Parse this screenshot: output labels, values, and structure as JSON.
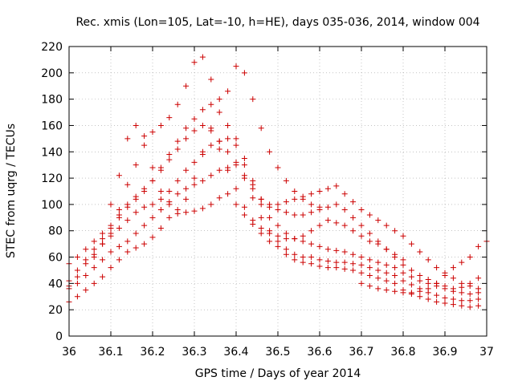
{
  "chart_data": {
    "type": "scatter",
    "title": "Rec. xmis (Lon=105, Lat=-10, h=HE), days 035-036, 2014, window 004",
    "xlabel": "GPS time / Days of year 2014",
    "ylabel": "STEC from uqrg / TECUs",
    "xlim": [
      36,
      37
    ],
    "ylim": [
      0,
      220
    ],
    "xticks": [
      36,
      36.1,
      36.2,
      36.3,
      36.4,
      36.5,
      36.6,
      36.7,
      36.8,
      36.9,
      37
    ],
    "xtick_labels": [
      "36",
      "36.1",
      "36.2",
      "36.3",
      "36.4",
      "36.5",
      "36.6",
      "36.7",
      "36.8",
      "36.9",
      "37"
    ],
    "yticks": [
      0,
      20,
      40,
      60,
      80,
      100,
      120,
      140,
      160,
      180,
      200,
      220
    ],
    "ytick_labels": [
      "0",
      "20",
      "40",
      "60",
      "80",
      "100",
      "120",
      "140",
      "160",
      "180",
      "200",
      "220"
    ],
    "grid": true,
    "legend": "none",
    "marker": "+",
    "color": "#cc0000",
    "series": [
      {
        "x": [
          36.0,
          36.02,
          36.04,
          36.06,
          36.08,
          36.1,
          36.12,
          36.14,
          36.16,
          36.18,
          36.2,
          36.22,
          36.24,
          36.26,
          36.28,
          36.3,
          36.32,
          36.34,
          36.36,
          36.38,
          36.4,
          36.42,
          36.44,
          36.46,
          36.48,
          36.5,
          36.52,
          36.54,
          36.56,
          36.58,
          36.6,
          36.62,
          36.64,
          36.66,
          36.68,
          36.7,
          36.72,
          36.74,
          36.76,
          36.78,
          36.8,
          36.82,
          36.84,
          36.86,
          36.88,
          36.9,
          36.92,
          36.94,
          36.96,
          36.98
        ],
        "y": [
          26,
          30,
          35,
          40,
          45,
          52,
          58,
          64,
          67,
          70,
          75,
          82,
          90,
          93,
          94,
          95,
          97,
          100,
          105,
          108,
          100,
          92,
          85,
          78,
          72,
          68,
          62,
          58,
          56,
          55,
          53,
          52,
          52,
          51,
          50,
          48,
          46,
          44,
          42,
          40,
          35,
          32,
          30,
          28,
          26,
          25,
          24,
          23,
          22,
          23
        ]
      },
      {
        "x": [
          36.0,
          36.02,
          36.04,
          36.06,
          36.08,
          36.1,
          36.12,
          36.14,
          36.16,
          36.18,
          36.2,
          36.22,
          36.24,
          36.26,
          36.28,
          36.3,
          36.32,
          36.34,
          36.36,
          36.38,
          36.4,
          36.42,
          36.44,
          36.46,
          36.48,
          36.5,
          36.52,
          36.54,
          36.56,
          36.58,
          36.6,
          36.62,
          36.64,
          36.66,
          36.68,
          36.7,
          36.72,
          36.74,
          36.76,
          36.78,
          36.8,
          36.82,
          36.84,
          36.86,
          36.88,
          36.9,
          36.92,
          36.94,
          36.96,
          36.98
        ],
        "y": [
          36,
          40,
          46,
          52,
          58,
          64,
          68,
          72,
          78,
          84,
          90,
          96,
          102,
          108,
          112,
          115,
          118,
          122,
          126,
          128,
          130,
          120,
          105,
          90,
          80,
          72,
          66,
          62,
          60,
          60,
          58,
          57,
          56,
          56,
          55,
          54,
          52,
          50,
          48,
          46,
          42,
          39,
          36,
          33,
          31,
          29,
          28,
          27,
          27,
          28
        ]
      },
      {
        "x": [
          36.0,
          36.02,
          36.04,
          36.06,
          36.08,
          36.1,
          36.12,
          36.14,
          36.16,
          36.18,
          36.2,
          36.22,
          36.24,
          36.26,
          36.28,
          36.3,
          36.32,
          36.34,
          36.36,
          36.38,
          36.4,
          36.42,
          36.44,
          36.46,
          36.48,
          36.5,
          36.52,
          36.54,
          36.56,
          36.58,
          36.6,
          36.62,
          36.64,
          36.66,
          36.68,
          36.7,
          36.72,
          36.74,
          36.76,
          36.78,
          36.8,
          36.82,
          36.84,
          36.86,
          36.88,
          36.9,
          36.92,
          36.94,
          36.96,
          36.98
        ],
        "y": [
          38,
          45,
          55,
          62,
          70,
          76,
          82,
          88,
          94,
          98,
          100,
          104,
          110,
          118,
          126,
          132,
          140,
          145,
          148,
          150,
          145,
          130,
          115,
          100,
          90,
          84,
          78,
          74,
          72,
          70,
          68,
          66,
          65,
          64,
          62,
          60,
          58,
          56,
          54,
          52,
          48,
          45,
          42,
          40,
          38,
          36,
          34,
          33,
          32,
          33
        ]
      },
      {
        "x": [
          36.0,
          36.02,
          36.04,
          36.06,
          36.08,
          36.1,
          36.12,
          36.14,
          36.16,
          36.18,
          36.2,
          36.22,
          36.24,
          36.26,
          36.28,
          36.3,
          36.32,
          36.34,
          36.36,
          36.38,
          36.4,
          36.42,
          36.44,
          36.46,
          36.48,
          36.5,
          36.52,
          36.54,
          36.56,
          36.58,
          36.6,
          36.62,
          36.64,
          36.66,
          36.68,
          36.7,
          36.72,
          36.74,
          36.76,
          36.78,
          36.8,
          36.82,
          36.84,
          36.86,
          36.88,
          36.9,
          36.92,
          36.94,
          36.96,
          36.98
        ],
        "y": [
          55,
          60,
          66,
          72,
          78,
          84,
          92,
          100,
          106,
          112,
          118,
          128,
          138,
          148,
          158,
          165,
          172,
          176,
          170,
          160,
          150,
          135,
          118,
          104,
          98,
          96,
          94,
          92,
          92,
          94,
          96,
          98,
          100,
          96,
          90,
          84,
          78,
          72,
          66,
          60,
          54,
          50,
          46,
          43,
          40,
          38,
          36,
          37,
          40,
          44
        ]
      },
      {
        "x": [
          36.0,
          36.02,
          36.04,
          36.06,
          36.08,
          36.1,
          36.12,
          36.14,
          36.16,
          36.18,
          36.2,
          36.22,
          36.24,
          36.26,
          36.28,
          36.3,
          36.32,
          36.34,
          36.36,
          36.38,
          36.4,
          36.42,
          36.44,
          36.46,
          36.48,
          36.5,
          36.52,
          36.54,
          36.56,
          36.58,
          36.6,
          36.62,
          36.64,
          36.66,
          36.68,
          36.7,
          36.72,
          36.74,
          36.76,
          36.78,
          36.8,
          36.82,
          36.84,
          36.86,
          36.88,
          36.9,
          36.92,
          36.94,
          36.96,
          36.98
        ],
        "y": [
          42,
          50,
          58,
          66,
          74,
          82,
          90,
          98,
          104,
          110,
          118,
          126,
          134,
          142,
          150,
          156,
          160,
          156,
          148,
          140,
          132,
          122,
          112,
          104,
          100,
          100,
          102,
          104,
          106,
          108,
          110,
          112,
          114,
          108,
          102,
          96,
          92,
          88,
          84,
          80,
          76,
          70,
          64,
          58,
          52,
          48,
          44,
          40,
          38,
          36
        ]
      },
      {
        "x": [
          36.1,
          36.12,
          36.14,
          36.16,
          36.18,
          36.2,
          36.22,
          36.24,
          36.26,
          36.28,
          36.3,
          36.32,
          36.34,
          36.36,
          36.38,
          36.4,
          36.42,
          36.44,
          36.46,
          36.48,
          36.5,
          36.52,
          36.54,
          36.56,
          36.58,
          36.6
        ],
        "y": [
          78,
          96,
          115,
          130,
          145,
          155,
          160,
          166,
          176,
          190,
          208,
          212,
          195,
          180,
          186,
          205,
          200,
          180,
          158,
          140,
          128,
          118,
          110,
          104,
          100,
          98
        ]
      },
      {
        "x": [
          36.06,
          36.08,
          36.1,
          36.12,
          36.14,
          36.16,
          36.18,
          36.2,
          36.22,
          36.24,
          36.26,
          36.28,
          36.3,
          36.32,
          36.34,
          36.36,
          36.38,
          36.4,
          36.42,
          36.44,
          36.46,
          36.48,
          36.5,
          36.52,
          36.54,
          36.56,
          36.58,
          36.6,
          36.62,
          36.64,
          36.66,
          36.68,
          36.7,
          36.72,
          36.74,
          36.76,
          36.78,
          36.8
        ],
        "y": [
          60,
          70,
          100,
          122,
          150,
          160,
          152,
          128,
          110,
          100,
          96,
          104,
          120,
          138,
          158,
          142,
          126,
          112,
          98,
          88,
          82,
          78,
          76,
          74,
          74,
          76,
          80,
          84,
          88,
          86,
          84,
          80,
          76,
          72,
          70,
          66,
          62,
          58
        ]
      },
      {
        "x": [
          36.7,
          36.72,
          36.74,
          36.76,
          36.78,
          36.8,
          36.82,
          36.84,
          36.86,
          36.88,
          36.9,
          36.92,
          36.94,
          36.96,
          36.98,
          37.0
        ],
        "y": [
          40,
          38,
          36,
          35,
          34,
          33,
          33,
          34,
          36,
          40,
          46,
          52,
          56,
          60,
          68,
          72
        ]
      }
    ]
  }
}
